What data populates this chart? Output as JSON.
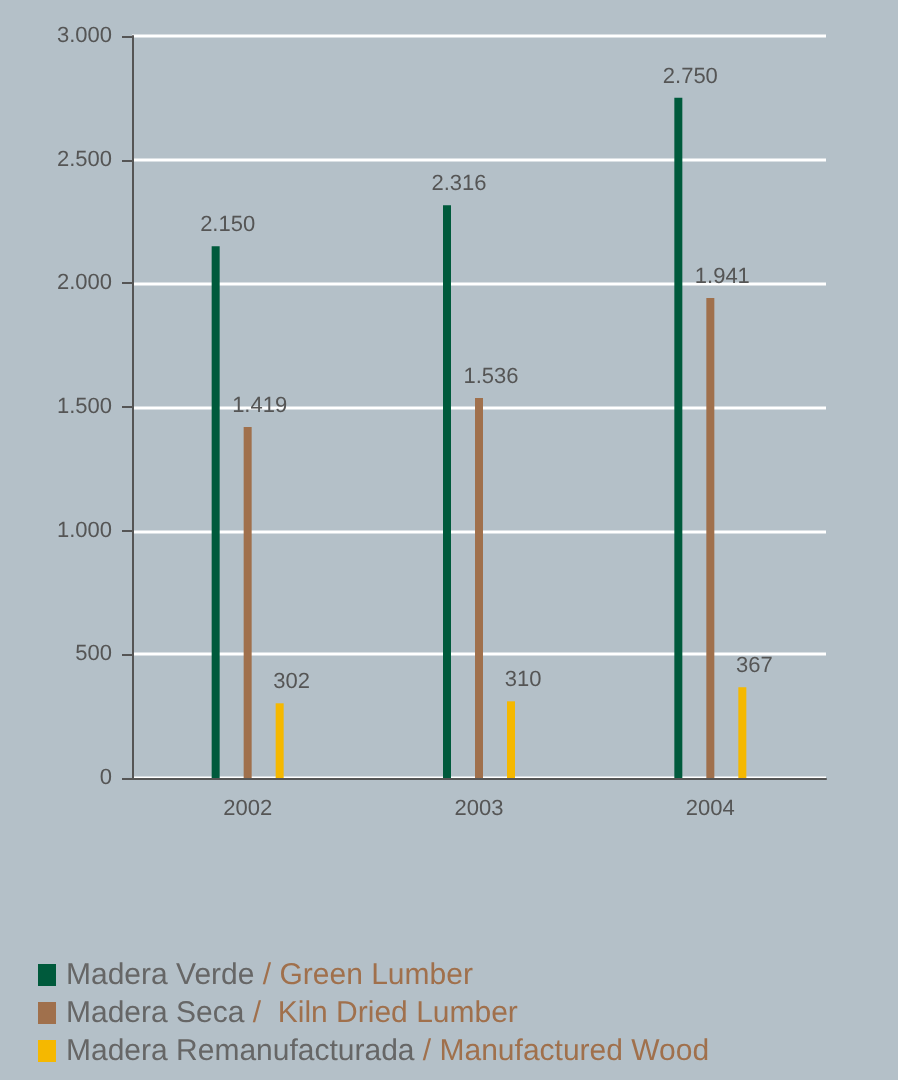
{
  "chart_data": {
    "type": "bar",
    "categories": [
      "2002",
      "2003",
      "2004"
    ],
    "series": [
      {
        "name": "Madera Verde / Green Lumber",
        "color": "#005a3c",
        "values": [
          2150,
          2316,
          2750
        ],
        "value_labels": [
          "2.150",
          "2.316",
          "2.750"
        ]
      },
      {
        "name": "Madera Seca /  Kiln Dried Lumber",
        "color": "#a0704c",
        "values": [
          1419,
          1536,
          1941
        ],
        "value_labels": [
          "1.419",
          "1.536",
          "1.941"
        ]
      },
      {
        "name": "Madera Remanufacturada / Manufactured Wood",
        "color": "#f5b800",
        "values": [
          302,
          310,
          367
        ],
        "value_labels": [
          "302",
          "310",
          "367"
        ]
      }
    ],
    "ylim": [
      0,
      3000
    ],
    "yticks": [
      0,
      {
        "value": 500,
        "label": "500"
      },
      {
        "value": 1000,
        "label": "1.000"
      },
      {
        "value": 1500,
        "label": "1.500"
      },
      {
        "value": 2000,
        "label": "2.000"
      },
      {
        "value": 2500,
        "label": "2.500"
      },
      {
        "value": 3000,
        "label": "3.000"
      }
    ],
    "grid": "y",
    "legend": "bottom left"
  }
}
